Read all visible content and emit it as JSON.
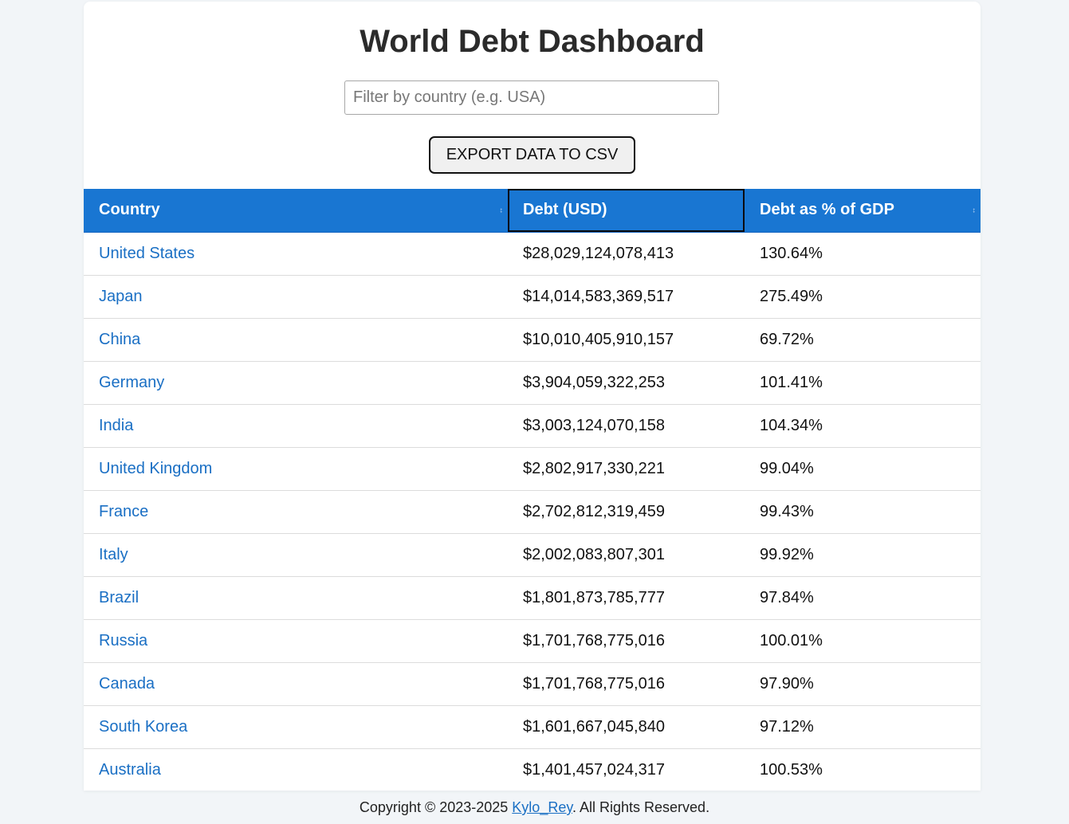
{
  "page": {
    "title": "World Debt Dashboard"
  },
  "filter": {
    "placeholder": "Filter by country (e.g. USA)",
    "value": ""
  },
  "export_button": {
    "label": "EXPORT DATA TO CSV"
  },
  "table": {
    "headers": {
      "country": "Country",
      "debt": "Debt (USD)",
      "gdp": "Debt as % of GDP"
    },
    "sort_icon": "↕",
    "rows": [
      {
        "country": "United States",
        "debt": "$28,029,124,078,413",
        "gdp": "130.64%"
      },
      {
        "country": "Japan",
        "debt": "$14,014,583,369,517",
        "gdp": "275.49%"
      },
      {
        "country": "China",
        "debt": "$10,010,405,910,157",
        "gdp": "69.72%"
      },
      {
        "country": "Germany",
        "debt": "$3,904,059,322,253",
        "gdp": "101.41%"
      },
      {
        "country": "India",
        "debt": "$3,003,124,070,158",
        "gdp": "104.34%"
      },
      {
        "country": "United Kingdom",
        "debt": "$2,802,917,330,221",
        "gdp": "99.04%"
      },
      {
        "country": "France",
        "debt": "$2,702,812,319,459",
        "gdp": "99.43%"
      },
      {
        "country": "Italy",
        "debt": "$2,002,083,807,301",
        "gdp": "99.92%"
      },
      {
        "country": "Brazil",
        "debt": "$1,801,873,785,777",
        "gdp": "97.84%"
      },
      {
        "country": "Russia",
        "debt": "$1,701,768,775,016",
        "gdp": "100.01%"
      },
      {
        "country": "Canada",
        "debt": "$1,701,768,775,016",
        "gdp": "97.90%"
      },
      {
        "country": "South Korea",
        "debt": "$1,601,667,045,840",
        "gdp": "97.12%"
      },
      {
        "country": "Australia",
        "debt": "$1,401,457,024,317",
        "gdp": "100.53%"
      }
    ]
  },
  "footer": {
    "prefix": "Copyright © 2023-2025 ",
    "author_link": "Kylo_Rey",
    "suffix": ". All Rights Reserved."
  },
  "colors": {
    "page_background": "#f2f5f8",
    "header_background": "#1976d2",
    "link": "#1a6fc4"
  }
}
